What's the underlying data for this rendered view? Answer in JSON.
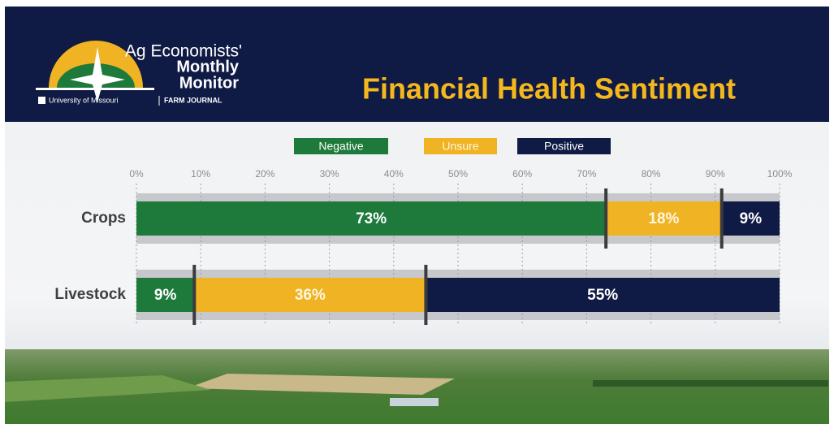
{
  "header": {
    "brand_line1": "Ag Economists'",
    "brand_line2": "Monthly",
    "brand_line3": "Monitor",
    "university": "University of Missouri",
    "partner": "FARM JOURNAL"
  },
  "chart_data": {
    "type": "stacked_bar",
    "orientation": "horizontal",
    "title": "Financial Health Sentiment",
    "categories": [
      "Crops",
      "Livestock"
    ],
    "series": [
      {
        "name": "Negative",
        "color": "#1d7a3a",
        "values": [
          73,
          9
        ],
        "value_labels": [
          "73%",
          "9%"
        ]
      },
      {
        "name": "Unsure",
        "color": "#f0b323",
        "values": [
          18,
          36
        ],
        "value_labels": [
          "18%",
          "36%"
        ]
      },
      {
        "name": "Positive",
        "color": "#0f1a45",
        "values": [
          9,
          55
        ],
        "value_labels": [
          "9%",
          "55%"
        ]
      }
    ],
    "xlim": [
      0,
      100
    ],
    "xticks": [
      {
        "value": 0,
        "label": "0%"
      },
      {
        "value": 10,
        "label": "10%"
      },
      {
        "value": 20,
        "label": "20%"
      },
      {
        "value": 30,
        "label": "30%"
      },
      {
        "value": 40,
        "label": "40%"
      },
      {
        "value": 50,
        "label": "50%"
      },
      {
        "value": 60,
        "label": "60%"
      },
      {
        "value": 70,
        "label": "70%"
      },
      {
        "value": 80,
        "label": "80%"
      },
      {
        "value": 90,
        "label": "90%"
      },
      {
        "value": 100,
        "label": "100%"
      }
    ],
    "grid": true,
    "legend": "top"
  }
}
